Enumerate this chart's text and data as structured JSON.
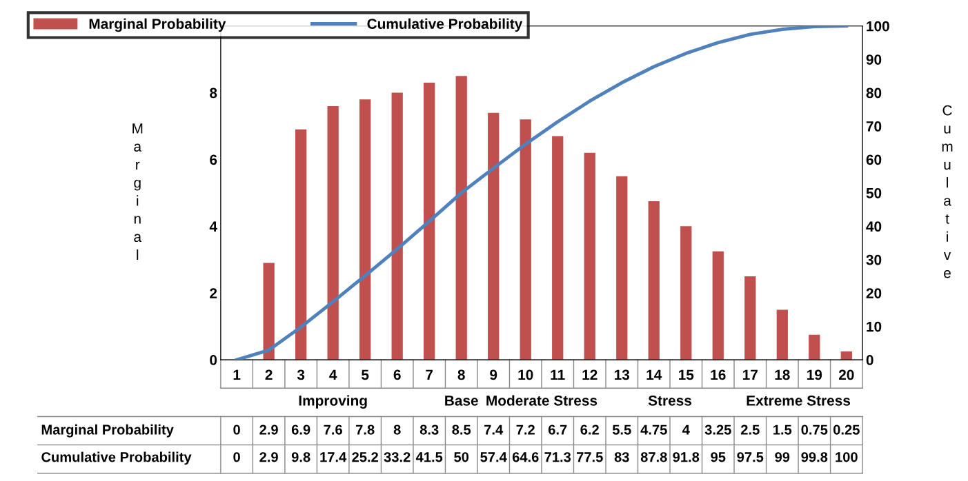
{
  "chart_data": {
    "type": "bar",
    "categories": [
      "1",
      "2",
      "3",
      "4",
      "5",
      "6",
      "7",
      "8",
      "9",
      "10",
      "11",
      "12",
      "13",
      "14",
      "15",
      "16",
      "17",
      "18",
      "19",
      "20"
    ],
    "series": [
      {
        "name": "Marginal Probability",
        "color": "#c0504d",
        "values": [
          0,
          2.9,
          6.9,
          7.6,
          7.8,
          8,
          8.3,
          8.5,
          7.4,
          7.2,
          6.7,
          6.2,
          5.5,
          4.75,
          4,
          3.25,
          2.5,
          1.5,
          0.75,
          0.25
        ]
      },
      {
        "name": "Cumulative Probability",
        "type": "line",
        "axis": "y2",
        "color": "#4f81bd",
        "values": [
          0,
          2.9,
          9.8,
          17.4,
          25.2,
          33.2,
          41.5,
          50,
          57.4,
          64.6,
          71.3,
          77.5,
          83,
          87.8,
          91.8,
          95,
          97.5,
          99,
          99.8,
          100
        ]
      }
    ],
    "ylabel": "Marginal",
    "y2label": "Cumulative",
    "ylim": [
      0,
      10
    ],
    "yticks": [
      0,
      2,
      4,
      6,
      8
    ],
    "y2lim": [
      0,
      100
    ],
    "y2ticks": [
      0,
      10,
      20,
      30,
      40,
      50,
      60,
      70,
      80,
      90,
      100
    ],
    "annotations": [
      "Improving",
      "Base",
      "Moderate Stress",
      "Stress",
      "Extreme Stress"
    ],
    "data_labels": true,
    "legend": "top left",
    "grid": false,
    "marker": "none",
    "line_style": "solid"
  }
}
